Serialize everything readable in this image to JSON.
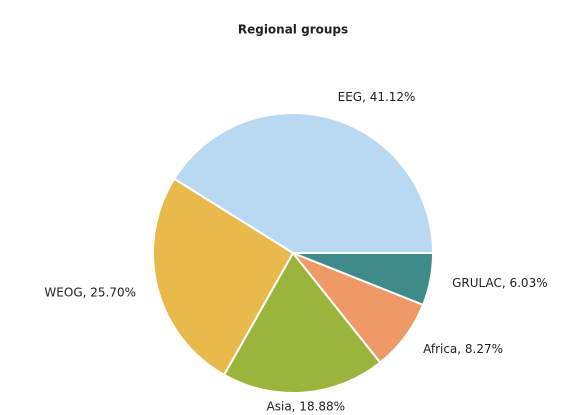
{
  "chart_data": {
    "type": "pie",
    "title": "Regional groups",
    "categories": [
      "EEG",
      "WEOG",
      "Asia",
      "Africa",
      "GRULAC"
    ],
    "values": [
      41.12,
      25.7,
      18.88,
      8.27,
      6.03
    ],
    "value_labels": [
      "EEG, 41.12%",
      "WEOG, 25.70%",
      "Asia, 18.88%",
      "Africa, 8.27%",
      "GRULAC, 6.03%"
    ],
    "colors": [
      "#b9d8f1",
      "#e9b94b",
      "#9bb43b",
      "#ef9966",
      "#3f8b89"
    ]
  }
}
